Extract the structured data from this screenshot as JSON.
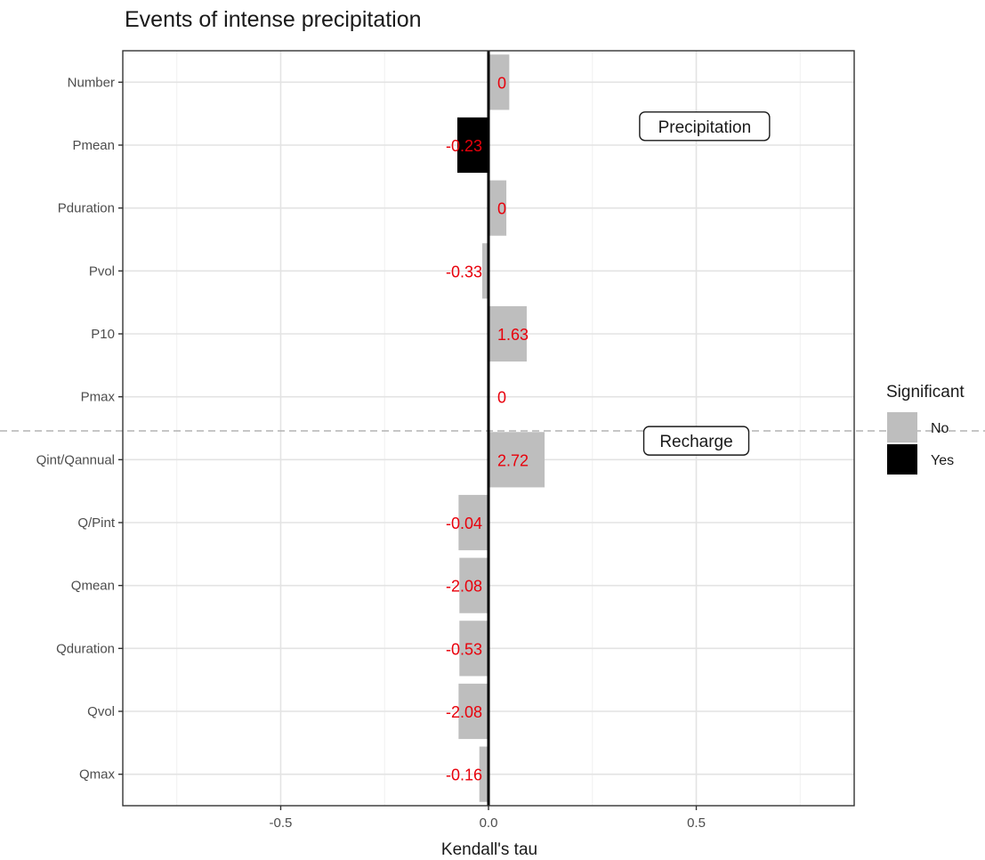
{
  "chart_data": {
    "type": "bar",
    "orientation": "horizontal",
    "title": "Events of intense precipitation",
    "xlabel": "Kendall's tau",
    "ylabel": "",
    "xlim": [
      -0.88,
      0.88
    ],
    "xticks": [
      -0.5,
      0.0,
      0.5
    ],
    "xtick_labels": [
      "-0.5",
      "0.0",
      "0.5"
    ],
    "grid": true,
    "categories": [
      "Number",
      "Pmean",
      "Pduration",
      "Pvol",
      "P10",
      "Pmax",
      "Qint/Qannual",
      "Q/Pint",
      "Qmean",
      "Qduration",
      "Qvol",
      "Qmax"
    ],
    "values": [
      0.05,
      -0.075,
      0.043,
      -0.015,
      0.092,
      0.0,
      0.135,
      -0.072,
      -0.07,
      -0.07,
      -0.072,
      -0.022
    ],
    "significant": [
      "No",
      "Yes",
      "No",
      "No",
      "No",
      "No",
      "No",
      "No",
      "No",
      "No",
      "No",
      "No"
    ],
    "data_labels": [
      "0",
      "-0.23",
      "0",
      "-0.33",
      "1.63",
      "0",
      "2.72",
      "-0.04",
      "-2.08",
      "-0.53",
      "-2.08",
      "-0.16"
    ],
    "group_annotations": [
      "Precipitation",
      "Recharge"
    ],
    "legend": {
      "title": "Significant",
      "placement": "right",
      "entries": [
        {
          "label": "No",
          "color": "#bebebe"
        },
        {
          "label": "Yes",
          "color": "#000000"
        }
      ]
    },
    "colors": {
      "No": "#bebebe",
      "Yes": "#000000",
      "data_label": "#e8000b"
    }
  }
}
